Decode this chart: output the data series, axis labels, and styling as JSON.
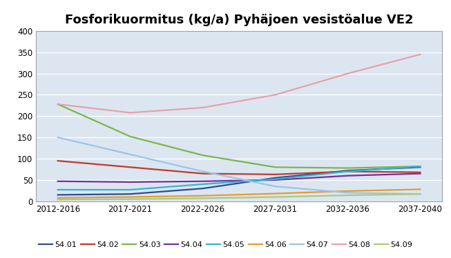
{
  "title": "Fosforikuormitus (kg/a) Pyhäjoen vesistöalue VE2",
  "x_labels": [
    "2012-2016",
    "2017-2021",
    "2022-2026",
    "2027-2031",
    "2032-2036",
    "2037-2040"
  ],
  "series": [
    {
      "label": "54.01",
      "values": [
        15,
        17,
        30,
        55,
        72,
        80
      ],
      "color": "#2e4b8e"
    },
    {
      "label": "54.02",
      "values": [
        95,
        80,
        65,
        63,
        70,
        68
      ],
      "color": "#c0392b"
    },
    {
      "label": "54.03",
      "values": [
        228,
        152,
        108,
        80,
        78,
        82
      ],
      "color": "#7ab648"
    },
    {
      "label": "54.04",
      "values": [
        47,
        45,
        47,
        50,
        60,
        65
      ],
      "color": "#7030a0"
    },
    {
      "label": "54.05",
      "values": [
        27,
        27,
        40,
        52,
        70,
        82
      ],
      "color": "#31b5d4"
    },
    {
      "label": "54.06",
      "values": [
        8,
        10,
        13,
        18,
        24,
        28
      ],
      "color": "#e59c2e"
    },
    {
      "label": "54.07",
      "values": [
        150,
        110,
        70,
        35,
        20,
        17
      ],
      "color": "#9dc3e6"
    },
    {
      "label": "54.08",
      "values": [
        228,
        208,
        220,
        250,
        300,
        345
      ],
      "color": "#e8a0a8"
    },
    {
      "label": "54.09",
      "values": [
        4,
        5,
        7,
        10,
        14,
        17
      ],
      "color": "#a9c97e"
    }
  ],
  "ylim": [
    0,
    400
  ],
  "yticks": [
    0,
    50,
    100,
    150,
    200,
    250,
    300,
    350,
    400
  ],
  "plot_bg_color": "#dce6f1",
  "fig_bg_color": "#ffffff",
  "outer_border_color": "#a0a0a0",
  "grid_color": "#ffffff",
  "title_fontsize": 13,
  "legend_fontsize": 8,
  "tick_fontsize": 8.5
}
